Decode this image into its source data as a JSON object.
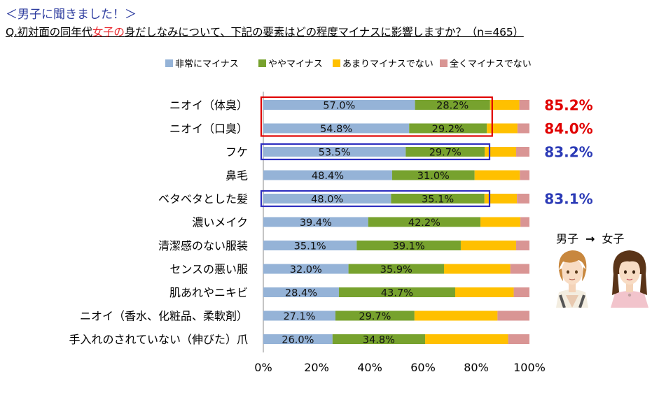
{
  "header": {
    "tag": "＜男子に聞きました！＞",
    "question_pre": "Q.初対面の同年代",
    "question_highlight": "女子の",
    "question_post": "身だしなみについて、下記の要素はどの程度マイナスに影響しますか？（n=465）"
  },
  "side": {
    "from_label": "男子",
    "arrow": "→",
    "to_label": "女子"
  },
  "colors": {
    "very_minus": "#95B3D7",
    "somewhat_minus": "#77A22E",
    "not_much": "#FFC000",
    "not_at_all": "#D99594",
    "red_box": "#E00000",
    "blue_box": "#3030C0",
    "red_text": "#E00000",
    "blue_text": "#2B3AB6"
  },
  "chart_data": {
    "type": "bar",
    "orientation": "horizontal",
    "stacked": true,
    "categories": [
      "ニオイ（体臭）",
      "ニオイ（口臭）",
      "フケ",
      "鼻毛",
      "ベタベタとした髪",
      "濃いメイク",
      "清潔感のない服装",
      "センスの悪い服",
      "肌あれやニキビ",
      "ニオイ（香水、化粧品、柔軟剤）",
      "手入れのされていない（伸びた）爪"
    ],
    "series": [
      {
        "name": "非常にマイナス",
        "values": [
          57.0,
          54.8,
          53.5,
          48.4,
          48.0,
          39.4,
          35.1,
          32.0,
          28.4,
          27.1,
          26.0
        ]
      },
      {
        "name": "ややマイナス",
        "values": [
          28.2,
          29.2,
          29.7,
          31.0,
          35.1,
          42.2,
          39.1,
          35.9,
          43.7,
          29.7,
          34.8
        ]
      },
      {
        "name": "あまりマイナスでない",
        "values": [
          11.0,
          11.5,
          11.8,
          17.0,
          12.2,
          15.0,
          20.8,
          24.9,
          22.0,
          31.2,
          31.2
        ]
      },
      {
        "name": "全くマイナスでない",
        "values": [
          3.8,
          4.5,
          5.0,
          3.6,
          4.7,
          3.4,
          5.0,
          7.2,
          5.9,
          12.0,
          8.0
        ]
      }
    ],
    "value_labels_series": [
      0,
      1
    ],
    "value_label_format": "0.0%",
    "totals": [
      {
        "row": 0,
        "text": "85.2%",
        "color": "red"
      },
      {
        "row": 1,
        "text": "84.0%",
        "color": "red"
      },
      {
        "row": 2,
        "text": "83.2%",
        "color": "blue"
      },
      {
        "row": 4,
        "text": "83.1%",
        "color": "blue"
      }
    ],
    "highlight_boxes": [
      {
        "rows": [
          0,
          1
        ],
        "color": "red",
        "extent": 86
      },
      {
        "rows": [
          2,
          2
        ],
        "color": "blue",
        "extent": 85
      },
      {
        "rows": [
          4,
          4
        ],
        "color": "blue",
        "extent": 85
      }
    ],
    "xlim": [
      0,
      100
    ],
    "xticks": [
      "0%",
      "20%",
      "40%",
      "60%",
      "80%",
      "100%"
    ],
    "legend_position": "top",
    "xlabel": "",
    "ylabel": ""
  }
}
